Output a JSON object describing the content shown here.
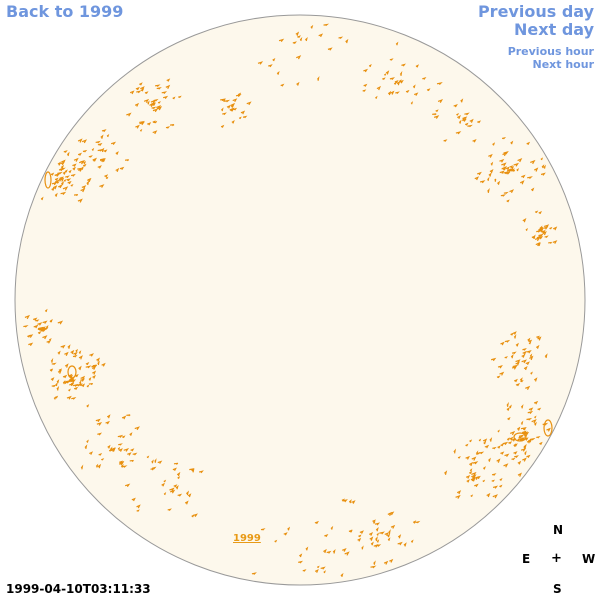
{
  "nav": {
    "back": "Back to 1999",
    "previous_day": "Previous day",
    "next_day": "Next day",
    "previous_hour": "Previous hour",
    "next_hour": "Next hour"
  },
  "timestamp": "1999-04-10T03:11:33",
  "year_link": "1999",
  "compass": {
    "north": "N",
    "south": "S",
    "east": "E",
    "west": "W",
    "center": "+"
  },
  "colors": {
    "disk_fill": "#fdf8ec",
    "disk_stroke": "#999999",
    "contour": "#e8900f",
    "link": "#6f96de"
  }
}
